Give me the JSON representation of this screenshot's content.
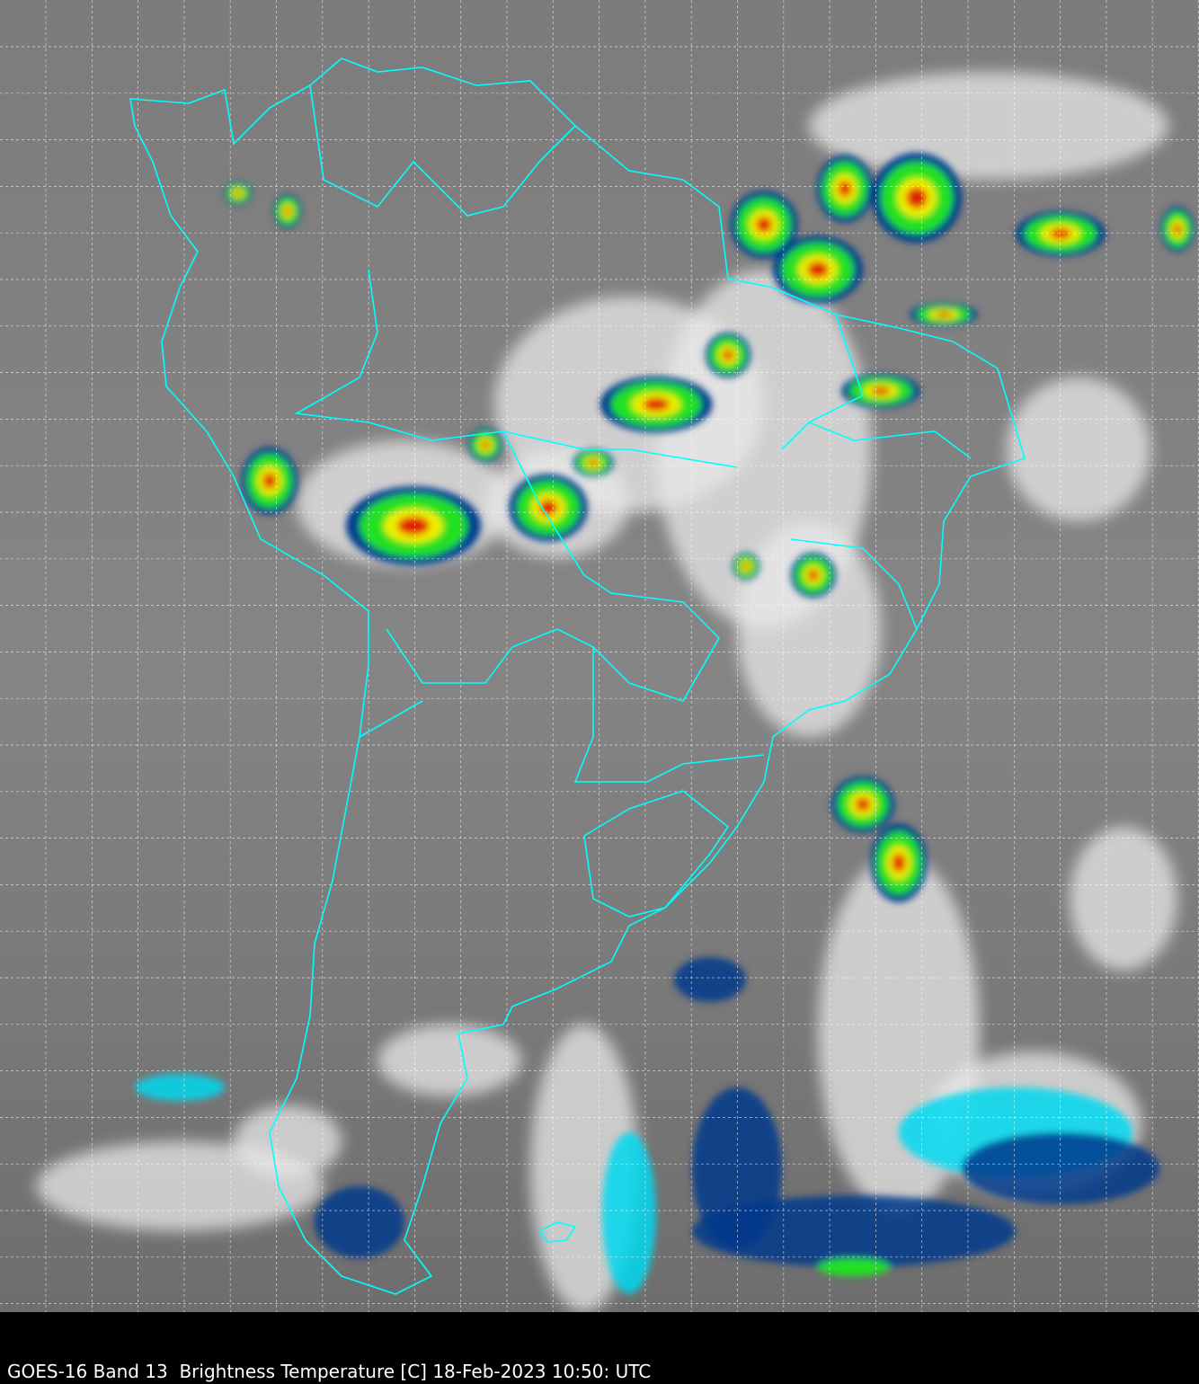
{
  "caption": "GOES-16 Band 13  Brightness Temperature [C] 18-Feb-2023 10:50: UTC",
  "map": {
    "imagery": "infrared brightness temperature",
    "colors": {
      "background_gray": "#7a7a7a",
      "coastline": "#00ffff",
      "grid": "#ffffff",
      "cold_cloud_blue": "#003a8c",
      "cold_cloud_cyan": "#00d8f0",
      "convective_green": "#20e020",
      "convective_yellow": "#f0f000",
      "convective_red": "#e02000",
      "overlay_black": "#101010"
    },
    "grid_lines": "dashed"
  }
}
